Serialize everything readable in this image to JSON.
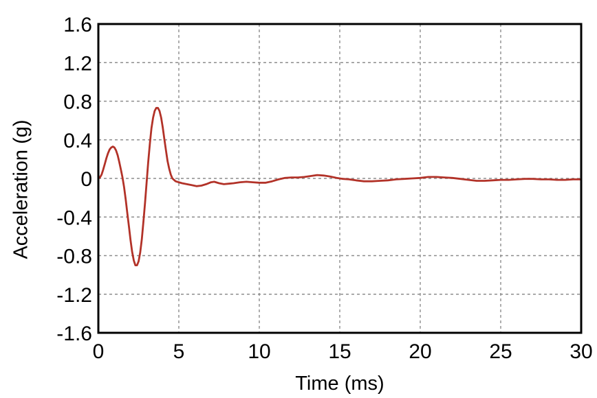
{
  "figure": {
    "background": "#ffffff"
  },
  "chart_data": {
    "type": "line",
    "title": "",
    "xlabel": "Time (ms)",
    "ylabel": "Acceleration (g)",
    "xlim": [
      0,
      30
    ],
    "ylim": [
      -1.6,
      1.6
    ],
    "xticks": [
      {
        "value": 0,
        "label": "0"
      },
      {
        "value": 5,
        "label": "5"
      },
      {
        "value": 10,
        "label": "10"
      },
      {
        "value": 15,
        "label": "15"
      },
      {
        "value": 20,
        "label": "20"
      },
      {
        "value": 25,
        "label": "25"
      },
      {
        "value": 30,
        "label": "30"
      }
    ],
    "yticks": [
      {
        "value": 1.6,
        "label": "1.6"
      },
      {
        "value": 1.2,
        "label": "1.2"
      },
      {
        "value": 0.8,
        "label": "0.8"
      },
      {
        "value": 0.4,
        "label": "0.4"
      },
      {
        "value": 0,
        "label": "0"
      },
      {
        "value": -0.4,
        "label": "-0.4"
      },
      {
        "value": -0.8,
        "label": "-0.8"
      },
      {
        "value": -1.2,
        "label": "-1.2"
      },
      {
        "value": -1.6,
        "label": "-1.6"
      }
    ],
    "grid": {
      "visible": true,
      "style": "dashed",
      "color": "#8c8c8c"
    },
    "frame_color": "#000000",
    "legend": "none",
    "series": [
      {
        "name": "acceleration-trace",
        "color": "#b23228",
        "points": [
          [
            0,
            0
          ],
          [
            0.1,
            0.01
          ],
          [
            0.2,
            0.04
          ],
          [
            0.3,
            0.09
          ],
          [
            0.4,
            0.15
          ],
          [
            0.5,
            0.21
          ],
          [
            0.6,
            0.26
          ],
          [
            0.7,
            0.3
          ],
          [
            0.8,
            0.32
          ],
          [
            0.9,
            0.33
          ],
          [
            1.0,
            0.32
          ],
          [
            1.1,
            0.29
          ],
          [
            1.2,
            0.24
          ],
          [
            1.3,
            0.17
          ],
          [
            1.4,
            0.09
          ],
          [
            1.5,
            0.01
          ],
          [
            1.6,
            -0.09
          ],
          [
            1.7,
            -0.22
          ],
          [
            1.8,
            -0.36
          ],
          [
            1.9,
            -0.5
          ],
          [
            2.0,
            -0.64
          ],
          [
            2.1,
            -0.76
          ],
          [
            2.2,
            -0.85
          ],
          [
            2.3,
            -0.9
          ],
          [
            2.4,
            -0.9
          ],
          [
            2.5,
            -0.86
          ],
          [
            2.6,
            -0.77
          ],
          [
            2.7,
            -0.63
          ],
          [
            2.8,
            -0.45
          ],
          [
            2.9,
            -0.25
          ],
          [
            3.0,
            -0.04
          ],
          [
            3.1,
            0.17
          ],
          [
            3.2,
            0.36
          ],
          [
            3.3,
            0.52
          ],
          [
            3.4,
            0.63
          ],
          [
            3.5,
            0.7
          ],
          [
            3.6,
            0.73
          ],
          [
            3.7,
            0.73
          ],
          [
            3.8,
            0.7
          ],
          [
            3.9,
            0.63
          ],
          [
            4.0,
            0.53
          ],
          [
            4.1,
            0.41
          ],
          [
            4.2,
            0.29
          ],
          [
            4.3,
            0.18
          ],
          [
            4.4,
            0.1
          ],
          [
            4.5,
            0.04
          ],
          [
            4.6,
            0.0
          ],
          [
            4.8,
            -0.03
          ],
          [
            5.0,
            -0.04
          ],
          [
            5.2,
            -0.05
          ],
          [
            5.5,
            -0.06
          ],
          [
            5.8,
            -0.07
          ],
          [
            6.1,
            -0.08
          ],
          [
            6.4,
            -0.075
          ],
          [
            6.7,
            -0.06
          ],
          [
            7.0,
            -0.04
          ],
          [
            7.2,
            -0.035
          ],
          [
            7.5,
            -0.05
          ],
          [
            7.8,
            -0.06
          ],
          [
            8.1,
            -0.055
          ],
          [
            8.4,
            -0.05
          ],
          [
            8.8,
            -0.04
          ],
          [
            9.2,
            -0.035
          ],
          [
            9.6,
            -0.04
          ],
          [
            10.0,
            -0.045
          ],
          [
            10.4,
            -0.045
          ],
          [
            10.8,
            -0.03
          ],
          [
            11.2,
            -0.01
          ],
          [
            11.6,
            0.005
          ],
          [
            12.0,
            0.01
          ],
          [
            12.4,
            0.01
          ],
          [
            12.8,
            0.015
          ],
          [
            13.2,
            0.025
          ],
          [
            13.6,
            0.035
          ],
          [
            14.0,
            0.03
          ],
          [
            14.4,
            0.02
          ],
          [
            14.8,
            0.005
          ],
          [
            15.2,
            -0.005
          ],
          [
            15.6,
            -0.01
          ],
          [
            16.0,
            -0.02
          ],
          [
            16.5,
            -0.03
          ],
          [
            17.0,
            -0.03
          ],
          [
            17.5,
            -0.025
          ],
          [
            18.0,
            -0.02
          ],
          [
            18.5,
            -0.01
          ],
          [
            19.0,
            -0.005
          ],
          [
            19.5,
            0.0
          ],
          [
            20.0,
            0.005
          ],
          [
            20.5,
            0.015
          ],
          [
            21.0,
            0.015
          ],
          [
            21.5,
            0.01
          ],
          [
            22.0,
            0.005
          ],
          [
            22.5,
            -0.005
          ],
          [
            23.0,
            -0.015
          ],
          [
            23.5,
            -0.025
          ],
          [
            24.0,
            -0.025
          ],
          [
            24.5,
            -0.02
          ],
          [
            25.0,
            -0.015
          ],
          [
            25.5,
            -0.015
          ],
          [
            26.0,
            -0.01
          ],
          [
            26.5,
            -0.005
          ],
          [
            27.0,
            -0.005
          ],
          [
            27.5,
            -0.01
          ],
          [
            28.0,
            -0.01
          ],
          [
            28.5,
            -0.015
          ],
          [
            29.0,
            -0.015
          ],
          [
            29.5,
            -0.01
          ],
          [
            30.0,
            -0.01
          ]
        ]
      }
    ]
  }
}
